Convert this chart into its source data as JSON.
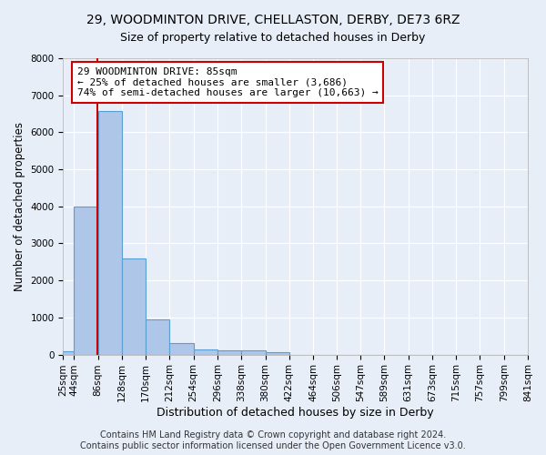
{
  "title": "29, WOODMINTON DRIVE, CHELLASTON, DERBY, DE73 6RZ",
  "subtitle": "Size of property relative to detached houses in Derby",
  "xlabel": "Distribution of detached houses by size in Derby",
  "ylabel": "Number of detached properties",
  "footer_line1": "Contains HM Land Registry data © Crown copyright and database right 2024.",
  "footer_line2": "Contains public sector information licensed under the Open Government Licence v3.0.",
  "annotation_line1": "29 WOODMINTON DRIVE: 85sqm",
  "annotation_line2": "← 25% of detached houses are smaller (3,686)",
  "annotation_line3": "74% of semi-detached houses are larger (10,663) →",
  "property_size": 85,
  "bin_edges": [
    25,
    44,
    86,
    128,
    170,
    212,
    254,
    296,
    338,
    380,
    422,
    464,
    506,
    547,
    589,
    631,
    673,
    715,
    757,
    799,
    841
  ],
  "tick_labels": [
    "25sqm",
    "44sqm",
    "86sqm",
    "128sqm",
    "170sqm",
    "212sqm",
    "254sqm",
    "296sqm",
    "338sqm",
    "380sqm",
    "422sqm",
    "464sqm",
    "506sqm",
    "547sqm",
    "589sqm",
    "631sqm",
    "673sqm",
    "715sqm",
    "757sqm",
    "799sqm",
    "841sqm"
  ],
  "bar_values": [
    100,
    4000,
    6580,
    2600,
    960,
    300,
    130,
    110,
    110,
    60,
    0,
    0,
    0,
    0,
    0,
    0,
    0,
    0,
    0,
    0
  ],
  "bar_color": "#aec6e8",
  "bar_edge_color": "#5a9fd4",
  "red_line_color": "#cc0000",
  "annotation_box_color": "#cc0000",
  "background_color": "#e8eef8",
  "grid_color": "#ffffff",
  "ylim": [
    0,
    8000
  ],
  "title_fontsize": 10,
  "subtitle_fontsize": 9,
  "xlabel_fontsize": 9,
  "ylabel_fontsize": 8.5,
  "tick_fontsize": 7.5,
  "annotation_fontsize": 8,
  "footer_fontsize": 7
}
